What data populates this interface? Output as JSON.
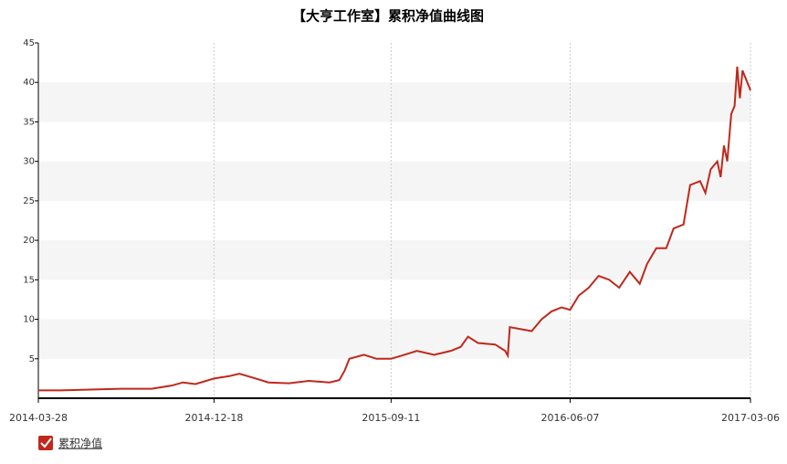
{
  "chart_data": {
    "type": "line",
    "title": "【大亨工作室】累积净值曲线图",
    "x": [
      "2014-03-28",
      "2014-05-01",
      "2014-06-15",
      "2014-08-01",
      "2014-09-15",
      "2014-10-15",
      "2014-11-01",
      "2014-11-20",
      "2014-12-18",
      "2015-01-10",
      "2015-01-25",
      "2015-02-15",
      "2015-03-10",
      "2015-04-10",
      "2015-05-10",
      "2015-06-10",
      "2015-06-25",
      "2015-07-03",
      "2015-07-10",
      "2015-08-01",
      "2015-08-20",
      "2015-09-11",
      "2015-10-01",
      "2015-10-20",
      "2015-11-15",
      "2015-12-10",
      "2015-12-25",
      "2016-01-05",
      "2016-01-20",
      "2016-02-15",
      "2016-03-01",
      "2016-03-05",
      "2016-03-08",
      "2016-04-10",
      "2016-04-25",
      "2016-05-10",
      "2016-05-25",
      "2016-06-07",
      "2016-06-20",
      "2016-07-05",
      "2016-07-20",
      "2016-08-05",
      "2016-08-20",
      "2016-09-05",
      "2016-09-20",
      "2016-10-01",
      "2016-10-15",
      "2016-10-30",
      "2016-11-10",
      "2016-11-25",
      "2016-12-05",
      "2016-12-20",
      "2016-12-28",
      "2017-01-05",
      "2017-01-15",
      "2017-01-20",
      "2017-01-25",
      "2017-01-30",
      "2017-02-05",
      "2017-02-10",
      "2017-02-14",
      "2017-02-18",
      "2017-02-22",
      "2017-03-06"
    ],
    "series": [
      {
        "name": "累积净值",
        "color": "#c0281c",
        "values": [
          1.0,
          1.0,
          1.1,
          1.2,
          1.2,
          1.6,
          2.0,
          1.8,
          2.5,
          2.8,
          3.1,
          2.6,
          2.0,
          1.9,
          2.2,
          2.0,
          2.3,
          3.5,
          5.0,
          5.5,
          5.0,
          5.0,
          5.5,
          6.0,
          5.5,
          6.0,
          6.5,
          7.8,
          7.0,
          6.8,
          6.0,
          5.4,
          9.0,
          8.5,
          10.0,
          11.0,
          11.5,
          11.2,
          13.0,
          14.0,
          15.5,
          15.0,
          14.0,
          16.0,
          14.5,
          17.0,
          19.0,
          19.0,
          21.5,
          22.0,
          27.0,
          27.5,
          26.0,
          29.0,
          30.0,
          28.0,
          32.0,
          30.0,
          36.0,
          37.0,
          42.0,
          38.0,
          41.5,
          39.0
        ]
      }
    ],
    "xlim": [
      "2014-03-28",
      "2017-03-06"
    ],
    "xticks": [
      "2014-03-28",
      "2014-12-18",
      "2015-09-11",
      "2016-06-07",
      "2017-03-06"
    ],
    "ylim": [
      0,
      45
    ],
    "yticks": [
      5,
      10,
      15,
      20,
      25,
      30,
      35,
      40,
      45
    ],
    "grid": true
  }
}
